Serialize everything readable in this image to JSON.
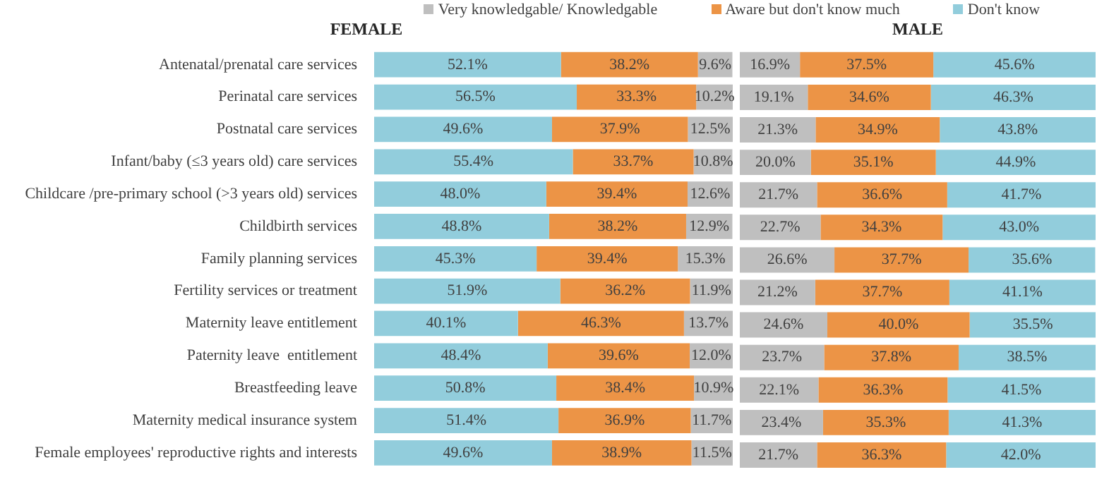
{
  "chart_data": [
    {
      "type": "bar",
      "title": "FEMALE",
      "orientation": "horizontal",
      "stacked": true,
      "xlim": [
        0,
        100
      ],
      "tick_labels": "y",
      "legend": "top",
      "categories": [
        "Antenatal/prenatal care services",
        "Perinatal care services",
        "Postnatal care services",
        "Infant/baby (≤3 years old) care services",
        "Childcare /pre-primary school (>3 years old) services",
        "Childbirth services",
        "Family planning services",
        "Fertility services or treatment",
        "Maternity leave entitlement",
        "Paternity leave  entitlement",
        "Breastfeeding leave",
        "Maternity medical insurance system",
        "Female employees' reproductive rights and interests"
      ],
      "series": [
        {
          "name": "Don't know",
          "color": "#92cddc",
          "values": [
            52.1,
            56.5,
            49.6,
            55.4,
            48.0,
            48.8,
            45.3,
            51.9,
            40.1,
            48.4,
            50.8,
            51.4,
            49.6
          ],
          "value_labels": [
            "52.1%",
            "56.5%",
            "49.6%",
            "55.4%",
            "48.0%",
            "48.8%",
            "45.3%",
            "51.9%",
            "40.1%",
            "48.4%",
            "50.8%",
            "51.4%",
            "49.6%"
          ]
        },
        {
          "name": "Aware but don't know much",
          "color": "#ec9446",
          "values": [
            38.2,
            33.3,
            37.9,
            33.7,
            39.4,
            38.2,
            39.4,
            36.2,
            46.3,
            39.6,
            38.4,
            36.9,
            38.9
          ],
          "value_labels": [
            "38.2%",
            "33.3%",
            "37.9%",
            "33.7%",
            "39.4%",
            "38.2%",
            "39.4%",
            "36.2%",
            "46.3%",
            "39.6%",
            "38.4%",
            "36.9%",
            "38.9%"
          ]
        },
        {
          "name": "Very knowledgable/ Knowledgable",
          "color": "#bfbfbf",
          "values": [
            9.6,
            10.2,
            12.5,
            10.8,
            12.6,
            12.9,
            15.3,
            11.9,
            13.7,
            12.0,
            10.9,
            11.7,
            11.5
          ],
          "value_labels": [
            "9.6%",
            "10.2%",
            "12.5%",
            "10.8%",
            "12.6%",
            "12.9%",
            "15.3%",
            "11.9%",
            "13.7%",
            "12.0%",
            "10.9%",
            "11.7%",
            "11.5%"
          ]
        }
      ]
    },
    {
      "type": "bar",
      "title": "MALE",
      "orientation": "horizontal",
      "stacked": true,
      "xlim": [
        0,
        100
      ],
      "tick_labels": false,
      "legend": "top",
      "categories": [
        null,
        null,
        null,
        null,
        null,
        null,
        null,
        null,
        null,
        null,
        null,
        null,
        null
      ],
      "series": [
        {
          "name": "Very knowledgable/ Knowledgable",
          "color": "#bfbfbf",
          "values": [
            16.9,
            19.1,
            21.3,
            20.0,
            21.7,
            22.7,
            26.6,
            21.2,
            24.6,
            23.7,
            22.1,
            23.4,
            21.7
          ],
          "value_labels": [
            "16.9%",
            "19.1%",
            "21.3%",
            "20.0%",
            "21.7%",
            "22.7%",
            "26.6%",
            "21.2%",
            "24.6%",
            "23.7%",
            "22.1%",
            "23.4%",
            "21.7%"
          ]
        },
        {
          "name": "Aware but don't know much",
          "color": "#ec9446",
          "values": [
            37.5,
            34.6,
            34.9,
            35.1,
            36.6,
            34.3,
            37.7,
            37.7,
            40.0,
            37.8,
            36.3,
            35.3,
            36.3
          ],
          "value_labels": [
            "37.5%",
            "34.6%",
            "34.9%",
            "35.1%",
            "36.6%",
            "34.3%",
            "37.7%",
            "37.7%",
            "40.0%",
            "37.8%",
            "36.3%",
            "35.3%",
            "36.3%"
          ]
        },
        {
          "name": "Don't know",
          "color": "#92cddc",
          "values": [
            45.6,
            46.3,
            43.8,
            44.9,
            41.7,
            43.0,
            35.6,
            41.1,
            35.5,
            38.5,
            41.5,
            41.3,
            42.0
          ],
          "value_labels": [
            "45.6%",
            "46.3%",
            "43.8%",
            "44.9%",
            "41.7%",
            "43.0%",
            "35.6%",
            "41.1%",
            "35.5%",
            "38.5%",
            "41.5%",
            "41.3%",
            "42.0%"
          ]
        }
      ]
    }
  ]
}
